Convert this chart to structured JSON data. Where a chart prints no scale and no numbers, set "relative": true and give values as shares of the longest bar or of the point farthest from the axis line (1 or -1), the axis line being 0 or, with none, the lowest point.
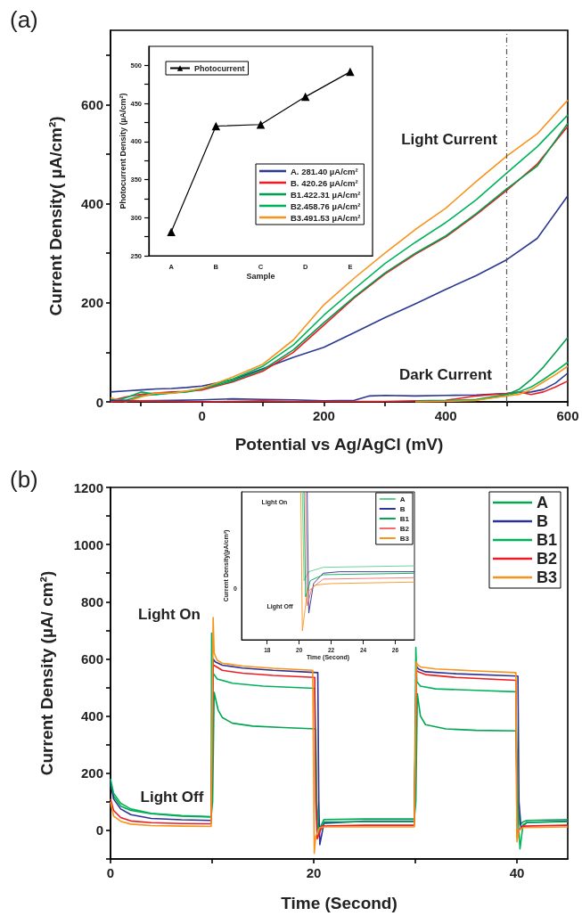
{
  "chart_data": [
    {
      "type": "line",
      "title": "(a)",
      "xlabel": "Potential vs Ag/AgCl (mV)",
      "ylabel": "Current Density( µA/cm²)",
      "xlim": [
        -150,
        600
      ],
      "xticks": [
        {
          "value": -100,
          "label": null
        },
        0,
        {
          "value": 100,
          "label": null
        },
        200,
        {
          "value": 300,
          "label": null
        },
        400,
        {
          "value": 500,
          "label": null
        },
        600
      ],
      "ylim": [
        0,
        750
      ],
      "yticks": [
        0,
        {
          "value": 100,
          "label": null
        },
        200,
        {
          "value": 300,
          "label": null
        },
        400,
        {
          "value": 500,
          "label": null
        },
        600,
        {
          "value": 700,
          "label": null
        }
      ],
      "legend": "top left",
      "marker": "none",
      "ref_lines": [
        {
          "axis": "x",
          "value": 500,
          "color": "#555555",
          "line_style": "dashed"
        }
      ],
      "annotations": [
        "Light Current",
        "Dark Current"
      ],
      "series": [
        {
          "name": "A. 281.40 µA/cm²",
          "color": "#2b3990",
          "x": [
            -150,
            -125,
            -100,
            -75,
            -50,
            -25,
            0,
            50,
            100,
            150,
            200,
            250,
            300,
            350,
            400,
            450,
            500,
            550,
            600
          ],
          "values": [
            20,
            22,
            24,
            26,
            27,
            29,
            32,
            45,
            67,
            90,
            110,
            140,
            170,
            198,
            227,
            255,
            287,
            330,
            416
          ]
        },
        {
          "name": "B. 420.26 µA/cm²",
          "color": "#ed1c24",
          "x": [
            -150,
            -125,
            -100,
            -75,
            -50,
            -25,
            0,
            50,
            100,
            150,
            200,
            250,
            300,
            350,
            400,
            450,
            500,
            550,
            600
          ],
          "values": [
            2,
            10,
            15,
            18,
            20,
            21,
            24,
            40,
            62,
            100,
            155,
            210,
            258,
            298,
            333,
            378,
            427,
            480,
            556
          ]
        },
        {
          "name": "B1.422.31 µA/cm²",
          "color": "#009f4d",
          "x": [
            -150,
            -125,
            -100,
            -75,
            -50,
            -25,
            0,
            50,
            100,
            150,
            200,
            250,
            300,
            350,
            400,
            450,
            500,
            550,
            600
          ],
          "values": [
            5,
            3,
            12,
            15,
            18,
            20,
            26,
            42,
            65,
            105,
            160,
            212,
            260,
            300,
            335,
            380,
            430,
            476,
            562
          ]
        },
        {
          "name": "B2.458.76 µA/cm²",
          "color": "#00b35a",
          "x": [
            -150,
            -125,
            -100,
            -75,
            -50,
            -25,
            0,
            50,
            100,
            150,
            200,
            250,
            300,
            350,
            400,
            450,
            500,
            550,
            600
          ],
          "values": [
            0,
            8,
            20,
            15,
            18,
            21,
            27,
            46,
            72,
            115,
            175,
            228,
            279,
            322,
            362,
            408,
            462,
            515,
            579
          ]
        },
        {
          "name": "B3.491.53 µA/cm²",
          "color": "#f7941d",
          "x": [
            -150,
            -125,
            -100,
            -75,
            -50,
            -25,
            0,
            50,
            100,
            150,
            200,
            250,
            300,
            350,
            400,
            450,
            500,
            550,
            600
          ],
          "values": [
            8,
            0,
            10,
            18,
            17,
            22,
            27,
            50,
            76,
            125,
            196,
            250,
            300,
            348,
            391,
            445,
            496,
            541,
            609
          ]
        },
        {
          "color": "#2b3990",
          "x": [
            -150,
            -100,
            -50,
            0,
            50,
            100,
            150,
            200,
            250,
            275,
            300,
            350,
            400,
            450,
            500,
            520,
            540,
            560,
            580,
            600
          ],
          "values": [
            3,
            2,
            3,
            4,
            6,
            5,
            4,
            2,
            3,
            12,
            13,
            12,
            13,
            14,
            17,
            19,
            20,
            25,
            38,
            58
          ]
        },
        {
          "color": "#ed1c24",
          "x": [
            -150,
            -100,
            -50,
            0,
            50,
            100,
            150,
            200,
            250,
            275,
            300,
            350,
            400,
            450,
            500,
            520,
            540,
            560,
            580,
            600
          ],
          "values": [
            0,
            2,
            1,
            0,
            1,
            2,
            1,
            1,
            1,
            1,
            1,
            2,
            3,
            12,
            17,
            20,
            15,
            20,
            30,
            42
          ]
        },
        {
          "color": "#009f4d",
          "x": [
            350,
            400,
            450,
            500,
            520,
            540,
            560,
            580,
            600
          ],
          "values": [
            1,
            2,
            5,
            15,
            25,
            45,
            70,
            100,
            130
          ]
        },
        {
          "color": "#00b35a",
          "x": [
            350,
            400,
            450,
            500,
            520,
            540,
            560,
            580,
            600
          ],
          "values": [
            1,
            2,
            4,
            12,
            20,
            30,
            45,
            62,
            80
          ]
        },
        {
          "color": "#f7941d",
          "x": [
            350,
            400,
            450,
            500,
            520,
            540,
            560,
            580,
            600
          ],
          "values": [
            0,
            1,
            3,
            12,
            15,
            25,
            40,
            55,
            72
          ]
        }
      ]
    },
    {
      "type": "line",
      "xlabel": "Sample",
      "ylabel": "Photocurrent Density (µA/cm²)",
      "categories": [
        "A",
        "B",
        "C",
        "D",
        "E"
      ],
      "ylim": [
        250,
        525
      ],
      "yticks": [
        250,
        {
          "value": 275,
          "label": null
        },
        300,
        {
          "value": 325,
          "label": null
        },
        350,
        {
          "value": 375,
          "label": null
        },
        400,
        {
          "value": 425,
          "label": null
        },
        450,
        {
          "value": 475,
          "label": null
        },
        500
      ],
      "legend": "top left",
      "marker": "triangle",
      "series": [
        {
          "name": "Photocurrent",
          "color": "#000000",
          "values": [
            281.4,
            420.26,
            422.31,
            458.76,
            491.53
          ]
        }
      ]
    },
    {
      "type": "line",
      "title": "(b)",
      "xlabel": "Time (Second)",
      "ylabel": "Current Density (µA/ cm²)",
      "xlim": [
        0,
        45
      ],
      "xticks": [
        0,
        {
          "value": 10,
          "label": null
        },
        20,
        {
          "value": 30,
          "label": null
        },
        40
      ],
      "ylim": [
        -100,
        1200
      ],
      "yticks": [
        {
          "value": -100,
          "label": null
        },
        0,
        {
          "value": 100,
          "label": null
        },
        200,
        {
          "value": 300,
          "label": null
        },
        400,
        {
          "value": 500,
          "label": null
        },
        600,
        {
          "value": 700,
          "label": null
        },
        800,
        {
          "value": 900,
          "label": null
        },
        1000,
        {
          "value": 1100,
          "label": null
        },
        1200
      ],
      "legend": "top right",
      "marker": "none",
      "annotations": [
        "Light On",
        "Light Off"
      ],
      "series": [
        {
          "name": "A",
          "color": "#00a650",
          "x": [
            0,
            0.3,
            1,
            2,
            4,
            7,
            9.9,
            10.05,
            10.2,
            10.6,
            11,
            12,
            14,
            17,
            20.2,
            20.3,
            20.5,
            21,
            25,
            29.9,
            30.05,
            30.2,
            30.5,
            31,
            33,
            36,
            39.9,
            40.05,
            40.3,
            40.6,
            41,
            45
          ],
          "values": [
            160,
            120,
            85,
            70,
            58,
            50,
            47,
            100,
            483,
            420,
            395,
            375,
            365,
            360,
            355,
            100,
            0,
            38,
            40,
            40,
            100,
            478,
            400,
            370,
            355,
            350,
            348,
            100,
            20,
            30,
            35,
            38
          ]
        },
        {
          "name": "B",
          "color": "#2e3192",
          "x": [
            0,
            0.3,
            1,
            2,
            4,
            7,
            9.9,
            10.1,
            10.3,
            11,
            13,
            16,
            20.4,
            20.5,
            20.6,
            21,
            25,
            29.9,
            30.1,
            30.3,
            31,
            34,
            40.1,
            40.2,
            40.4,
            41,
            45
          ],
          "values": [
            170,
            110,
            75,
            55,
            42,
            37,
            35,
            600,
            590,
            578,
            568,
            560,
            552,
            100,
            -50,
            25,
            32,
            32,
            575,
            565,
            555,
            548,
            540,
            100,
            10,
            28,
            32
          ]
        },
        {
          "name": "B1",
          "color": "#00b259",
          "x": [
            0,
            0.3,
            1,
            2,
            4,
            7,
            9.9,
            9.95,
            10.1,
            10.5,
            12,
            15,
            20.1,
            20.3,
            20.5,
            21,
            25,
            29.9,
            30.05,
            30.15,
            30.5,
            32,
            36,
            39.9,
            40.1,
            40.3,
            40.6,
            41,
            45
          ],
          "values": [
            180,
            130,
            95,
            75,
            60,
            52,
            48,
            690,
            550,
            530,
            515,
            505,
            497,
            40,
            -10,
            30,
            30,
            30,
            640,
            520,
            505,
            495,
            490,
            485,
            60,
            -65,
            20,
            28,
            30
          ]
        },
        {
          "name": "B2",
          "color": "#ed1c24",
          "x": [
            0,
            0.3,
            1,
            2,
            4,
            7,
            9.9,
            10.1,
            10.3,
            11,
            13,
            16,
            20.1,
            20.2,
            20.35,
            20.8,
            25,
            29.9,
            30.1,
            30.3,
            31,
            34,
            39.9,
            40,
            40.2,
            40.6,
            45
          ],
          "values": [
            110,
            70,
            45,
            33,
            27,
            24,
            23,
            580,
            575,
            560,
            550,
            542,
            535,
            100,
            -30,
            15,
            18,
            18,
            560,
            555,
            545,
            535,
            525,
            -25,
            0,
            15,
            18
          ]
        },
        {
          "name": "B3",
          "color": "#f7941d",
          "x": [
            0,
            0.3,
            1,
            2,
            4,
            7,
            9.9,
            10.1,
            10.2,
            10.5,
            11,
            13,
            16,
            19.9,
            20.05,
            20.2,
            20.6,
            21,
            25,
            29.9,
            30.1,
            30.2,
            30.5,
            32,
            36,
            39.9,
            40,
            40.2,
            40.6,
            45
          ],
          "values": [
            100,
            50,
            32,
            22,
            17,
            15,
            14,
            745,
            620,
            595,
            585,
            575,
            567,
            560,
            -80,
            -20,
            10,
            12,
            12,
            12,
            590,
            580,
            572,
            565,
            558,
            552,
            -40,
            0,
            10,
            12
          ]
        }
      ]
    },
    {
      "type": "line",
      "xlabel": "Time (Second)",
      "ylabel": "Current Density(µA/cm²)",
      "relative": true,
      "xlim": [
        16.4,
        27.2
      ],
      "xticks": [
        18,
        20,
        22,
        24,
        26
      ],
      "legend": "top right",
      "marker": "none",
      "annotations": [
        "Light On",
        "Light Off",
        "0"
      ],
      "series": [
        {
          "name": "A",
          "color": "#5ccf8c",
          "x": [
            20.2,
            20.3,
            20.6,
            21.5,
            27.2
          ],
          "values": [
            1,
            0.4,
            0.46,
            0.49,
            0.5
          ]
        },
        {
          "name": "B",
          "color": "#2e3192",
          "x": [
            20.5,
            20.6,
            20.9,
            21.5,
            22.5,
            27.2
          ],
          "values": [
            1,
            0.18,
            0.38,
            0.45,
            0.46,
            0.46
          ]
        },
        {
          "name": "B1",
          "color": "#00a651",
          "x": [
            20.3,
            20.4,
            20.7,
            21.5,
            27.2
          ],
          "values": [
            1,
            0.29,
            0.4,
            0.44,
            0.45
          ]
        },
        {
          "name": "B2",
          "color": "#f26b6b",
          "x": [
            20.4,
            20.5,
            20.8,
            21.5,
            27.2
          ],
          "values": [
            1,
            0.23,
            0.35,
            0.41,
            0.42
          ]
        },
        {
          "name": "B3",
          "color": "#f7941d",
          "x": [
            20.1,
            20.2,
            20.5,
            21,
            22,
            27.2
          ],
          "values": [
            1,
            0.06,
            0.32,
            0.37,
            0.38,
            0.39
          ]
        }
      ]
    }
  ]
}
